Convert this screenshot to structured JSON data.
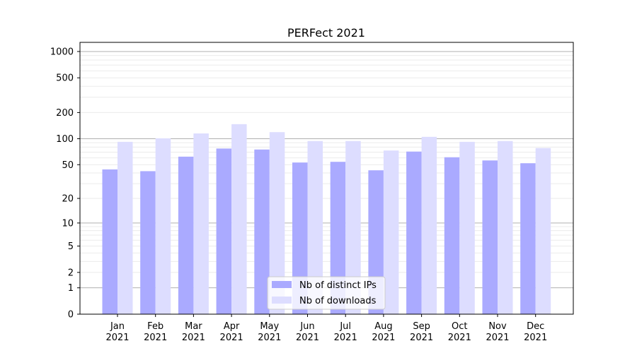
{
  "chart_data": {
    "type": "bar",
    "title": "PERFect 2021",
    "xlabel": "",
    "ylabel": "",
    "yscale": "log10(y+1)",
    "ylim": [
      0,
      1300
    ],
    "yticks": [
      0,
      1,
      2,
      5,
      10,
      20,
      50,
      100,
      200,
      500,
      1000
    ],
    "ytick_labels": [
      "0",
      "1",
      "2",
      "5",
      "10",
      "20",
      "50",
      "100",
      "200",
      "500",
      "1000"
    ],
    "grid": true,
    "legend_position": "bottom-center",
    "categories": [
      [
        "Jan",
        "2021"
      ],
      [
        "Feb",
        "2021"
      ],
      [
        "Mar",
        "2021"
      ],
      [
        "Apr",
        "2021"
      ],
      [
        "May",
        "2021"
      ],
      [
        "Jun",
        "2021"
      ],
      [
        "Jul",
        "2021"
      ],
      [
        "Aug",
        "2021"
      ],
      [
        "Sep",
        "2021"
      ],
      [
        "Oct",
        "2021"
      ],
      [
        "Nov",
        "2021"
      ],
      [
        "Dec",
        "2021"
      ]
    ],
    "series": [
      {
        "name": "Nb of distinct IPs",
        "color": "#aaaaff",
        "values": [
          44,
          42,
          62,
          77,
          75,
          53,
          54,
          43,
          71,
          61,
          56,
          52
        ]
      },
      {
        "name": "Nb of downloads",
        "color": "#ddddff",
        "values": [
          92,
          101,
          115,
          147,
          119,
          94,
          94,
          73,
          105,
          92,
          94,
          78
        ]
      }
    ]
  }
}
